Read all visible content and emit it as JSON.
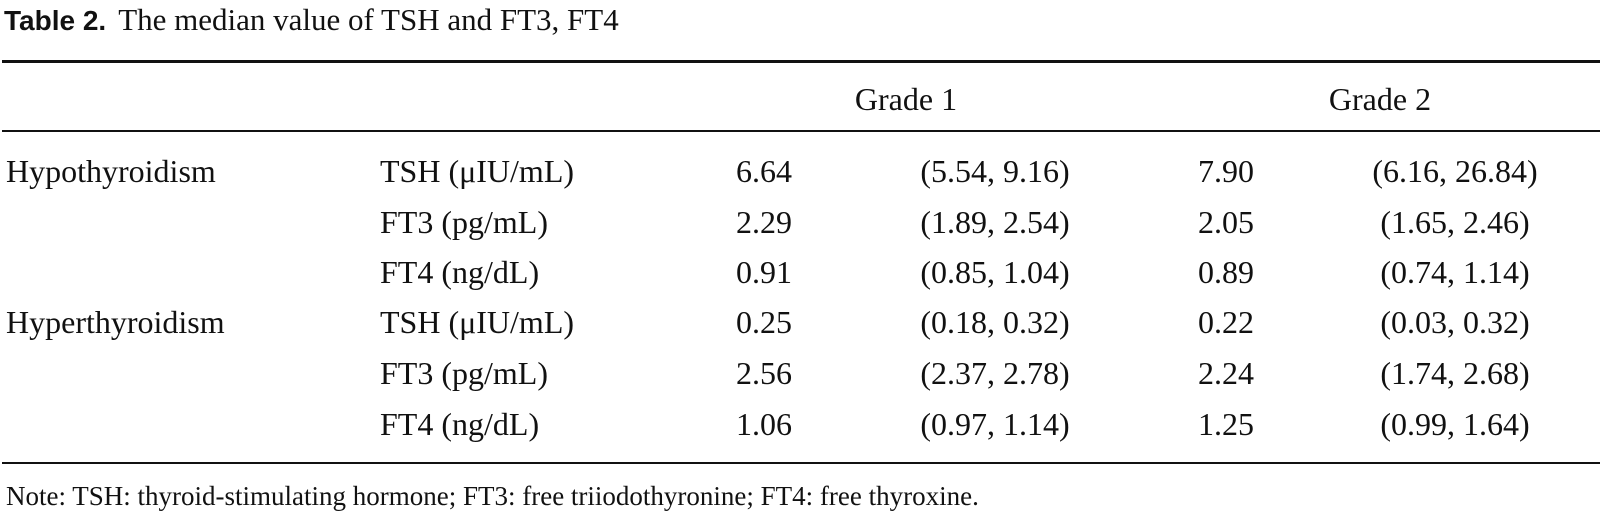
{
  "table": {
    "label": "Table 2.",
    "title": "The median value of TSH and FT3, FT4",
    "grade_headers": [
      "Grade 1",
      "Grade 2"
    ],
    "rows": [
      {
        "group": "Hypothyroidism",
        "parameter": "TSH (μIU/mL)",
        "g1_median": "6.64",
        "g1_iqr": "(5.54, 9.16)",
        "g2_median": "7.90",
        "g2_iqr": "(6.16, 26.84)"
      },
      {
        "group": "",
        "parameter": "FT3 (pg/mL)",
        "g1_median": "2.29",
        "g1_iqr": "(1.89, 2.54)",
        "g2_median": "2.05",
        "g2_iqr": "(1.65, 2.46)"
      },
      {
        "group": "",
        "parameter": "FT4 (ng/dL)",
        "g1_median": "0.91",
        "g1_iqr": "(0.85, 1.04)",
        "g2_median": "0.89",
        "g2_iqr": "(0.74, 1.14)"
      },
      {
        "group": "Hyperthyroidism",
        "parameter": "TSH (μIU/mL)",
        "g1_median": "0.25",
        "g1_iqr": "(0.18, 0.32)",
        "g2_median": "0.22",
        "g2_iqr": "(0.03, 0.32)"
      },
      {
        "group": "",
        "parameter": "FT3 (pg/mL)",
        "g1_median": "2.56",
        "g1_iqr": "(2.37, 2.78)",
        "g2_median": "2.24",
        "g2_iqr": "(1.74, 2.68)"
      },
      {
        "group": "",
        "parameter": "FT4 (ng/dL)",
        "g1_median": "1.06",
        "g1_iqr": "(0.97, 1.14)",
        "g2_median": "1.25",
        "g2_iqr": "(0.99, 1.64)"
      }
    ],
    "note": "Note: TSH: thyroid-stimulating hormone; FT3: free triiodothyronine; FT4: free thyroxine."
  }
}
